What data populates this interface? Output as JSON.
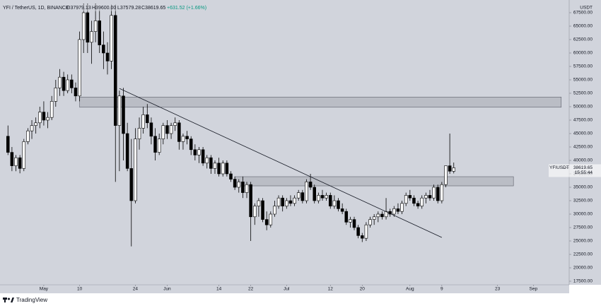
{
  "chart_data": {
    "type": "candlestick",
    "header": {
      "symbol": "YFI / TetherUS, 1D, BINANCE",
      "open": "O37979.13",
      "high": "H39600.00",
      "low": "L37579.28",
      "close": "C38619.65",
      "change": "+631.52 (+1.66%)"
    },
    "y_unit": "USDT",
    "price_tag": {
      "symbol": "YFIUSDT",
      "price": 38619.65,
      "countdown": "15:55:44"
    },
    "footer": "TradingView",
    "bull_color": "#ffffff",
    "bear_color": "#000000",
    "x": [
      "Apr 22",
      "Apr 23",
      "Apr 24",
      "Apr 25",
      "Apr 26",
      "Apr 27",
      "Apr 28",
      "Apr 29",
      "Apr 30",
      "May 1",
      "May 2",
      "May 3",
      "May 4",
      "May 5",
      "May 6",
      "May 7",
      "May 8",
      "May 9",
      "May 10",
      "May 11",
      "May 12",
      "May 13",
      "May 14",
      "May 15",
      "May 16",
      "May 17",
      "May 18",
      "May 19",
      "May 20",
      "May 21",
      "May 22",
      "May 23",
      "May 24",
      "May 25",
      "May 26",
      "May 27",
      "May 28",
      "May 29",
      "May 30",
      "May 31",
      "Jun 1",
      "Jun 2",
      "Jun 3",
      "Jun 4",
      "Jun 5",
      "Jun 6",
      "Jun 7",
      "Jun 8",
      "Jun 9",
      "Jun 10",
      "Jun 11",
      "Jun 12",
      "Jun 13",
      "Jun 14",
      "Jun 15",
      "Jun 16",
      "Jun 17",
      "Jun 18",
      "Jun 19",
      "Jun 20",
      "Jun 21",
      "Jun 22",
      "Jun 23",
      "Jun 24",
      "Jun 25",
      "Jun 26",
      "Jun 27",
      "Jun 28",
      "Jun 29",
      "Jun 30",
      "Jul 1",
      "Jul 2",
      "Jul 3",
      "Jul 4",
      "Jul 5",
      "Jul 6",
      "Jul 7",
      "Jul 8",
      "Jul 9",
      "Jul 10",
      "Jul 11",
      "Jul 12",
      "Jul 13",
      "Jul 14",
      "Jul 15",
      "Jul 16",
      "Jul 17",
      "Jul 18",
      "Jul 19",
      "Jul 20",
      "Jul 21",
      "Jul 22",
      "Jul 23",
      "Jul 24",
      "Jul 25",
      "Jul 26",
      "Jul 27",
      "Jul 28",
      "Jul 29",
      "Jul 30",
      "Jul 31",
      "Aug 1",
      "Aug 2",
      "Aug 3",
      "Aug 4",
      "Aug 5",
      "Aug 6",
      "Aug 7",
      "Aug 8",
      "Aug 9",
      "Aug 10",
      "Aug 11",
      "Aug 12"
    ],
    "open": [
      44500,
      41500,
      39000,
      40500,
      38500,
      43500,
      45500,
      46500,
      47000,
      49000,
      47500,
      48000,
      51000,
      53500,
      55500,
      53000,
      55000,
      53500,
      52000,
      62500,
      67500,
      62000,
      64000,
      66000,
      61500,
      60000,
      58500,
      67000,
      46500,
      52000,
      45000,
      38500,
      32500,
      44000,
      46000,
      48500,
      47000,
      44500,
      41500,
      44000,
      46500,
      45000,
      46500,
      47000,
      43500,
      44500,
      44000,
      42000,
      41000,
      42000,
      39500,
      40500,
      38500,
      39500,
      37500,
      39500,
      37500,
      36500,
      35000,
      36000,
      34000,
      35500,
      29500,
      31500,
      32500,
      29000,
      28000,
      30000,
      31500,
      33000,
      31500,
      32500,
      32000,
      33000,
      34000,
      32500,
      36000,
      35000,
      32500,
      33500,
      33000,
      33500,
      31500,
      32500,
      31000,
      30500,
      28500,
      29000,
      27500,
      26000,
      25500,
      28000,
      29000,
      29500,
      30000,
      29500,
      30500,
      30000,
      31000,
      30500,
      32000,
      33500,
      33000,
      32000,
      31500,
      33000,
      33500,
      33000,
      35000,
      32500,
      35500,
      39000,
      37979.13
    ],
    "high": [
      46500,
      42500,
      41000,
      41000,
      44000,
      46000,
      47500,
      48000,
      50000,
      51000,
      49000,
      52000,
      55000,
      57000,
      56500,
      56000,
      56000,
      54500,
      64000,
      69200,
      69200,
      66000,
      69200,
      68000,
      64000,
      62000,
      69000,
      69000,
      53000,
      53500,
      47000,
      44000,
      46000,
      48000,
      50000,
      50500,
      48000,
      46000,
      45000,
      47000,
      47500,
      47000,
      48000,
      47500,
      45000,
      45500,
      44500,
      43000,
      42500,
      42500,
      41000,
      41000,
      40000,
      40500,
      40000,
      40000,
      38000,
      37000,
      36500,
      37000,
      36000,
      36000,
      32000,
      33000,
      33000,
      30500,
      30500,
      32500,
      33500,
      33500,
      33000,
      33500,
      33500,
      34500,
      34500,
      36500,
      37500,
      35500,
      34000,
      34500,
      34000,
      34000,
      33500,
      33000,
      32000,
      31000,
      29500,
      29500,
      28000,
      26500,
      28500,
      29500,
      30000,
      30500,
      30500,
      33000,
      31000,
      31500,
      32000,
      32500,
      34000,
      34500,
      33500,
      32500,
      33500,
      34000,
      34500,
      35500,
      35500,
      36000,
      39000,
      45000,
      39600
    ],
    "low": [
      41000,
      38000,
      38000,
      37600,
      38000,
      43000,
      44000,
      45000,
      46000,
      46500,
      46000,
      47500,
      50000,
      52000,
      52000,
      52500,
      52500,
      51000,
      51000,
      60000,
      60000,
      58000,
      62000,
      60000,
      57000,
      56000,
      57000,
      36000,
      38000,
      40000,
      38000,
      24000,
      32000,
      42000,
      45000,
      46000,
      43000,
      40000,
      41000,
      43000,
      44000,
      44000,
      45500,
      42000,
      42000,
      43000,
      41000,
      40000,
      39500,
      39000,
      38500,
      37500,
      37500,
      37000,
      37000,
      37000,
      36000,
      34500,
      34000,
      33000,
      33000,
      25000,
      28000,
      29500,
      28500,
      27000,
      27500,
      29500,
      31000,
      30500,
      31000,
      31500,
      31500,
      32500,
      32000,
      32000,
      34500,
      32000,
      32000,
      32500,
      32500,
      31000,
      31000,
      30500,
      30000,
      28000,
      27500,
      27000,
      25500,
      24800,
      25000,
      27500,
      28000,
      28500,
      29000,
      29000,
      29500,
      29500,
      30000,
      30000,
      31500,
      32500,
      31500,
      31000,
      31000,
      32000,
      32500,
      32500,
      32000,
      32000,
      35000,
      37500,
      37579.28
    ],
    "close": [
      41500,
      39000,
      40500,
      38500,
      43500,
      45500,
      46500,
      47000,
      49000,
      47500,
      48000,
      51000,
      53500,
      55500,
      53000,
      55000,
      53500,
      52000,
      62500,
      67500,
      62000,
      64000,
      66000,
      61500,
      60000,
      58500,
      67000,
      46500,
      52000,
      45000,
      38500,
      32500,
      44000,
      46000,
      48500,
      47000,
      44500,
      41500,
      44000,
      46500,
      45000,
      46500,
      47000,
      43500,
      44500,
      44000,
      42000,
      41000,
      42000,
      39500,
      40500,
      38500,
      39500,
      37500,
      39500,
      37500,
      36500,
      35000,
      36000,
      34000,
      35500,
      29500,
      31500,
      32500,
      29000,
      28000,
      30000,
      31500,
      33000,
      31500,
      32500,
      32000,
      33000,
      34000,
      32500,
      36000,
      35000,
      32500,
      33500,
      33000,
      33500,
      31500,
      32500,
      31000,
      30500,
      28500,
      29000,
      27500,
      26000,
      25500,
      28000,
      29000,
      29500,
      30000,
      29500,
      30500,
      30000,
      31000,
      30500,
      32000,
      33500,
      33000,
      32000,
      31500,
      33000,
      33500,
      33000,
      35000,
      32500,
      35500,
      39000,
      37988.13,
      38619.65
    ],
    "zones": [
      {
        "start": "May 10",
        "end": "Sep 8",
        "low": 49900,
        "high": 51800
      },
      {
        "start": "Jun 18",
        "end": "Aug 27",
        "low": 35260,
        "high": 36970
      }
    ],
    "trendline": {
      "x": [
        "May 20",
        "Aug 9"
      ],
      "y": [
        53400,
        25660
      ]
    },
    "xlim": [
      "Apr 20",
      "Sep 10"
    ],
    "xticks": [
      {
        "value": "May 1",
        "label": "May"
      },
      {
        "value": "May 10",
        "label": "10"
      },
      {
        "value": "May 24",
        "label": "24"
      },
      {
        "value": "Jun 1",
        "label": "Jun"
      },
      {
        "value": "Jun 14",
        "label": "14"
      },
      {
        "value": "Jun 22",
        "label": "22"
      },
      {
        "value": "Jul 1",
        "label": "Jul"
      },
      {
        "value": "Jul 12",
        "label": "12"
      },
      {
        "value": "Jul 20",
        "label": "20"
      },
      {
        "value": "Aug 1",
        "label": "Aug"
      },
      {
        "value": "Aug 9",
        "label": "9"
      },
      {
        "value": "Aug 23",
        "label": "23"
      },
      {
        "value": "Sep 1",
        "label": "Sep"
      }
    ],
    "ylim": [
      16840,
      69210
    ],
    "yticks": [
      {
        "value": 17500,
        "label": "17500.00"
      },
      {
        "value": 20000,
        "label": "20000.00"
      },
      {
        "value": 22500,
        "label": "22500.00"
      },
      {
        "value": 25000,
        "label": "25000.00"
      },
      {
        "value": 27500,
        "label": "27500.00"
      },
      {
        "value": 30000,
        "label": "30000.00"
      },
      {
        "value": 32500,
        "label": "32500.00"
      },
      {
        "value": 35000,
        "label": "35000.00"
      },
      {
        "value": 37500,
        "label": "37500.00"
      },
      {
        "value": 40000,
        "label": "40000.00"
      },
      {
        "value": 42500,
        "label": "42500.00"
      },
      {
        "value": 45000,
        "label": "45000.00"
      },
      {
        "value": 47500,
        "label": "47500.00"
      },
      {
        "value": 50000,
        "label": "50000.00"
      },
      {
        "value": 52500,
        "label": "52500.00"
      },
      {
        "value": 55000,
        "label": "55000.00"
      },
      {
        "value": 57500,
        "label": "57500.00"
      },
      {
        "value": 60000,
        "label": "60000.00"
      },
      {
        "value": 62500,
        "label": "62500.00"
      },
      {
        "value": 65000,
        "label": "65000.00"
      },
      {
        "value": 67500,
        "label": "67500.00"
      }
    ]
  }
}
